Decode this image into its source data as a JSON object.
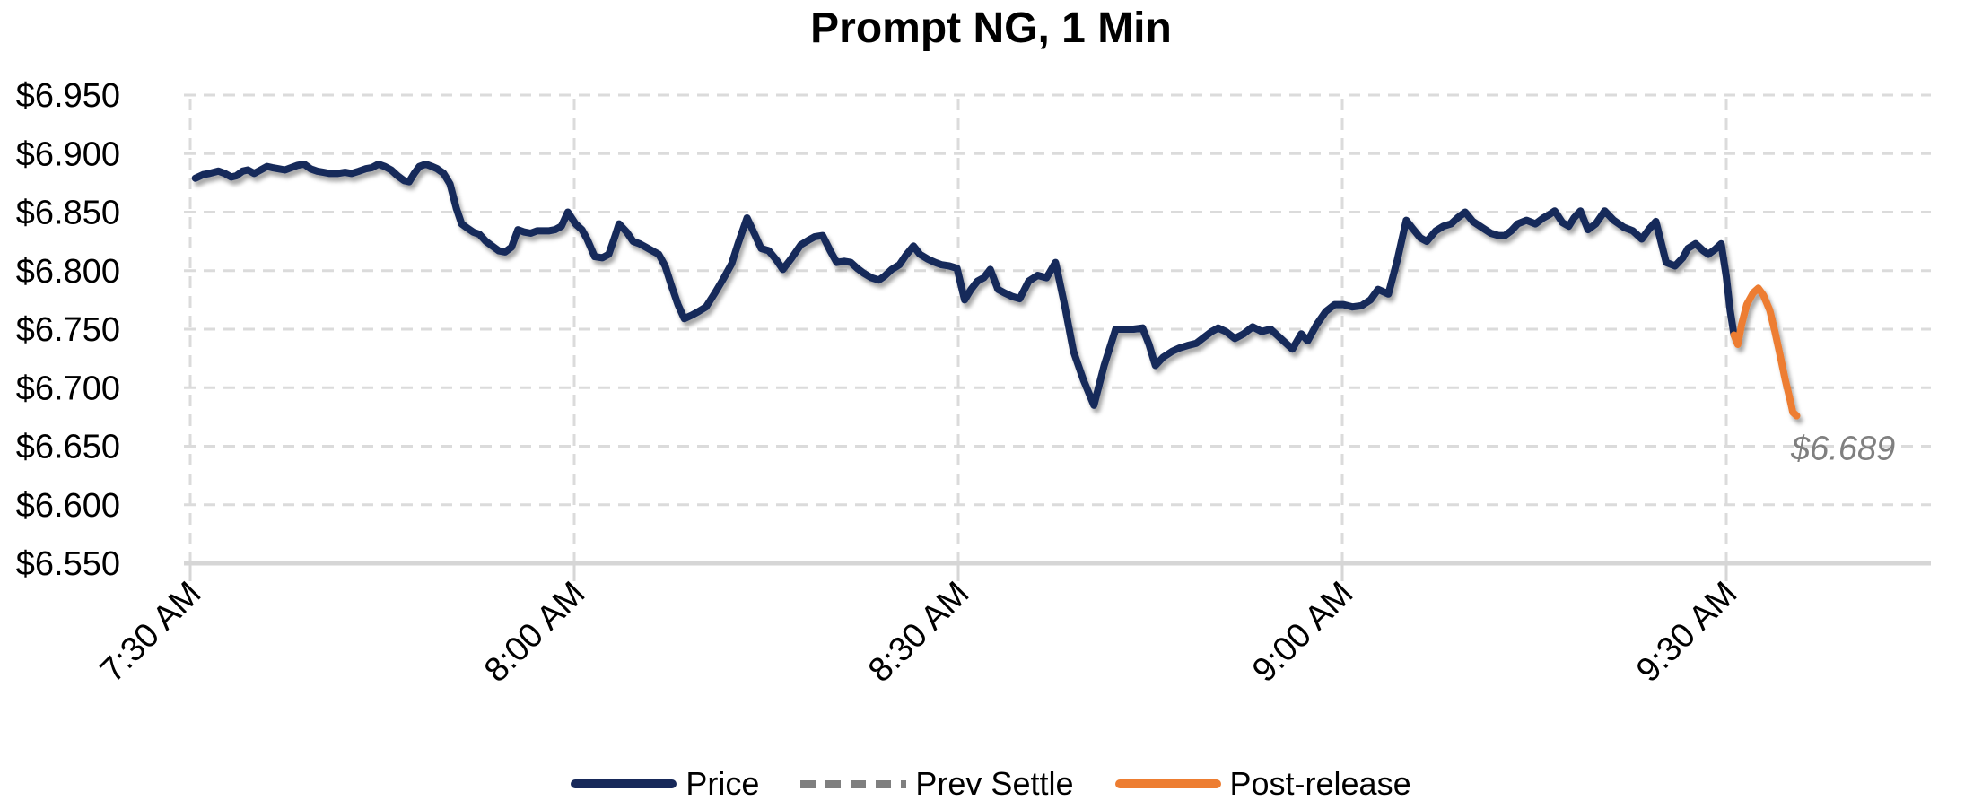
{
  "chart_data": {
    "type": "line",
    "title": "Prompt NG, 1 Min",
    "x_axis": {
      "t_unit": "minutes after 7:30 AM",
      "ticks": [
        {
          "t": 0,
          "label": "7:30 AM"
        },
        {
          "t": 30,
          "label": "8:00 AM"
        },
        {
          "t": 60,
          "label": "8:30 AM"
        },
        {
          "t": 90,
          "label": "9:00 AM"
        },
        {
          "t": 120,
          "label": "9:30 AM"
        }
      ]
    },
    "y_axis": {
      "min": 6.55,
      "max": 6.95,
      "tick_step": 0.05,
      "ticks": [
        {
          "value": 6.95,
          "label": "$6.950"
        },
        {
          "value": 6.9,
          "label": "$6.900"
        },
        {
          "value": 6.85,
          "label": "$6.850"
        },
        {
          "value": 6.8,
          "label": "$6.800"
        },
        {
          "value": 6.75,
          "label": "$6.750"
        },
        {
          "value": 6.7,
          "label": "$6.700"
        },
        {
          "value": 6.65,
          "label": "$6.650"
        },
        {
          "value": 6.6,
          "label": "$6.600"
        },
        {
          "value": 6.55,
          "label": "$6.550"
        }
      ]
    },
    "grid": {
      "style": "dashed",
      "color": "#DBDBDB",
      "legend_position": "bottom-center"
    },
    "prev_settle": {
      "value": 6.689,
      "annotation": "$6.689",
      "color": "#7F7F7F"
    },
    "legend": [
      {
        "label": "Price",
        "color": "#17295A",
        "dash": false
      },
      {
        "label": "Prev Settle",
        "color": "#7F7F7F",
        "dash": true
      },
      {
        "label": "Post-release",
        "color": "#ED7D31",
        "dash": false
      }
    ],
    "series": [
      {
        "name": "Price",
        "color": "#17295A",
        "points": [
          [
            0.4,
            6.879
          ],
          [
            1,
            6.882
          ],
          [
            1.5,
            6.883
          ],
          [
            2.2,
            6.885
          ],
          [
            2.7,
            6.883
          ],
          [
            3.2,
            6.88
          ],
          [
            3.6,
            6.881
          ],
          [
            4.1,
            6.885
          ],
          [
            4.5,
            6.886
          ],
          [
            5,
            6.883
          ],
          [
            5.5,
            6.886
          ],
          [
            6,
            6.889
          ],
          [
            6.4,
            6.888
          ],
          [
            6.9,
            6.887
          ],
          [
            7.4,
            6.886
          ],
          [
            7.9,
            6.888
          ],
          [
            8.4,
            6.89
          ],
          [
            8.9,
            6.891
          ],
          [
            9.4,
            6.887
          ],
          [
            9.9,
            6.885
          ],
          [
            10.4,
            6.884
          ],
          [
            10.9,
            6.883
          ],
          [
            11.5,
            6.883
          ],
          [
            12.1,
            6.884
          ],
          [
            12.6,
            6.883
          ],
          [
            13.2,
            6.885
          ],
          [
            13.7,
            6.887
          ],
          [
            14.2,
            6.888
          ],
          [
            14.7,
            6.891
          ],
          [
            15.2,
            6.889
          ],
          [
            15.7,
            6.886
          ],
          [
            16.2,
            6.881
          ],
          [
            16.7,
            6.877
          ],
          [
            17.1,
            6.876
          ],
          [
            17.5,
            6.883
          ],
          [
            17.9,
            6.889
          ],
          [
            18.4,
            6.891
          ],
          [
            18.9,
            6.889
          ],
          [
            19.3,
            6.887
          ],
          [
            19.8,
            6.883
          ],
          [
            20.3,
            6.874
          ],
          [
            20.8,
            6.853
          ],
          [
            21.2,
            6.84
          ],
          [
            21.7,
            6.836
          ],
          [
            22.1,
            6.833
          ],
          [
            22.6,
            6.831
          ],
          [
            23.1,
            6.825
          ],
          [
            23.6,
            6.821
          ],
          [
            24.1,
            6.817
          ],
          [
            24.6,
            6.816
          ],
          [
            25.1,
            6.82
          ],
          [
            25.6,
            6.835
          ],
          [
            26.1,
            6.833
          ],
          [
            26.6,
            6.832
          ],
          [
            27.1,
            6.834
          ],
          [
            27.5,
            6.834
          ],
          [
            28,
            6.834
          ],
          [
            28.5,
            6.835
          ],
          [
            29,
            6.838
          ],
          [
            29.5,
            6.85
          ],
          [
            30.1,
            6.84
          ],
          [
            30.6,
            6.835
          ],
          [
            31,
            6.827
          ],
          [
            31.6,
            6.812
          ],
          [
            32.2,
            6.811
          ],
          [
            32.7,
            6.814
          ],
          [
            33.2,
            6.83
          ],
          [
            33.5,
            6.84
          ],
          [
            34.1,
            6.833
          ],
          [
            34.6,
            6.825
          ],
          [
            35.1,
            6.823
          ],
          [
            35.6,
            6.82
          ],
          [
            36.1,
            6.817
          ],
          [
            36.6,
            6.814
          ],
          [
            37.1,
            6.804
          ],
          [
            37.6,
            6.787
          ],
          [
            38.1,
            6.771
          ],
          [
            38.6,
            6.759
          ],
          [
            39.2,
            6.762
          ],
          [
            39.7,
            6.765
          ],
          [
            40.3,
            6.769
          ],
          [
            41,
            6.781
          ],
          [
            41.7,
            6.794
          ],
          [
            42.3,
            6.806
          ],
          [
            42.8,
            6.823
          ],
          [
            43.5,
            6.845
          ],
          [
            44.1,
            6.831
          ],
          [
            44.6,
            6.819
          ],
          [
            45.2,
            6.817
          ],
          [
            45.8,
            6.809
          ],
          [
            46.3,
            6.801
          ],
          [
            47,
            6.811
          ],
          [
            47.7,
            6.822
          ],
          [
            48.3,
            6.826
          ],
          [
            48.8,
            6.829
          ],
          [
            49.4,
            6.83
          ],
          [
            50,
            6.817
          ],
          [
            50.5,
            6.807
          ],
          [
            51.1,
            6.808
          ],
          [
            51.6,
            6.807
          ],
          [
            52.1,
            6.802
          ],
          [
            52.6,
            6.798
          ],
          [
            53.2,
            6.794
          ],
          [
            53.8,
            6.792
          ],
          [
            54.2,
            6.795
          ],
          [
            54.8,
            6.801
          ],
          [
            55.4,
            6.805
          ],
          [
            55.9,
            6.813
          ],
          [
            56.5,
            6.821
          ],
          [
            57,
            6.814
          ],
          [
            57.6,
            6.81
          ],
          [
            58.2,
            6.807
          ],
          [
            58.7,
            6.805
          ],
          [
            59.3,
            6.804
          ],
          [
            59.9,
            6.802
          ],
          [
            60.5,
            6.775
          ],
          [
            61,
            6.784
          ],
          [
            61.5,
            6.791
          ],
          [
            62,
            6.794
          ],
          [
            62.5,
            6.801
          ],
          [
            63.1,
            6.784
          ],
          [
            63.6,
            6.781
          ],
          [
            64.2,
            6.778
          ],
          [
            64.8,
            6.776
          ],
          [
            65.5,
            6.791
          ],
          [
            66.2,
            6.796
          ],
          [
            66.9,
            6.794
          ],
          [
            67.6,
            6.807
          ],
          [
            68.3,
            6.771
          ],
          [
            69,
            6.731
          ],
          [
            69.8,
            6.706
          ],
          [
            70.6,
            6.685
          ],
          [
            71.4,
            6.719
          ],
          [
            72.3,
            6.75
          ],
          [
            73,
            6.75
          ],
          [
            73.7,
            6.75
          ],
          [
            74.4,
            6.751
          ],
          [
            74.9,
            6.737
          ],
          [
            75.4,
            6.719
          ],
          [
            76,
            6.726
          ],
          [
            76.7,
            6.731
          ],
          [
            77.3,
            6.734
          ],
          [
            77.9,
            6.736
          ],
          [
            78.6,
            6.738
          ],
          [
            79.2,
            6.743
          ],
          [
            79.8,
            6.748
          ],
          [
            80.3,
            6.751
          ],
          [
            80.9,
            6.748
          ],
          [
            81.6,
            6.742
          ],
          [
            82.3,
            6.746
          ],
          [
            83,
            6.752
          ],
          [
            83.7,
            6.748
          ],
          [
            84.4,
            6.75
          ],
          [
            85.2,
            6.742
          ],
          [
            86.1,
            6.733
          ],
          [
            86.8,
            6.746
          ],
          [
            87.3,
            6.74
          ],
          [
            88,
            6.754
          ],
          [
            88.7,
            6.765
          ],
          [
            89.4,
            6.771
          ],
          [
            90.1,
            6.771
          ],
          [
            90.8,
            6.769
          ],
          [
            91.5,
            6.77
          ],
          [
            92.2,
            6.775
          ],
          [
            92.8,
            6.784
          ],
          [
            93.6,
            6.78
          ],
          [
            94.3,
            6.809
          ],
          [
            95,
            6.843
          ],
          [
            95.5,
            6.836
          ],
          [
            96.1,
            6.828
          ],
          [
            96.6,
            6.825
          ],
          [
            97.3,
            6.834
          ],
          [
            97.9,
            6.838
          ],
          [
            98.5,
            6.84
          ],
          [
            99,
            6.845
          ],
          [
            99.6,
            6.85
          ],
          [
            100.2,
            6.842
          ],
          [
            100.9,
            6.837
          ],
          [
            101.6,
            6.832
          ],
          [
            102.2,
            6.83
          ],
          [
            102.7,
            6.83
          ],
          [
            103.2,
            6.834
          ],
          [
            103.7,
            6.84
          ],
          [
            104.4,
            6.843
          ],
          [
            105.1,
            6.84
          ],
          [
            105.7,
            6.845
          ],
          [
            106.2,
            6.848
          ],
          [
            106.6,
            6.851
          ],
          [
            107.2,
            6.841
          ],
          [
            107.7,
            6.838
          ],
          [
            108.1,
            6.845
          ],
          [
            108.6,
            6.851
          ],
          [
            109.2,
            6.835
          ],
          [
            109.8,
            6.84
          ],
          [
            110.5,
            6.851
          ],
          [
            111.2,
            6.843
          ],
          [
            112,
            6.837
          ],
          [
            112.7,
            6.834
          ],
          [
            113.4,
            6.827
          ],
          [
            114,
            6.836
          ],
          [
            114.5,
            6.842
          ],
          [
            115.3,
            6.807
          ],
          [
            116,
            6.804
          ],
          [
            116.6,
            6.811
          ],
          [
            117,
            6.819
          ],
          [
            117.6,
            6.823
          ],
          [
            118.2,
            6.817
          ],
          [
            118.6,
            6.814
          ],
          [
            119.1,
            6.818
          ],
          [
            119.6,
            6.823
          ],
          [
            120,
            6.795
          ],
          [
            120.3,
            6.766
          ],
          [
            120.6,
            6.745
          ]
        ]
      },
      {
        "name": "Post-release",
        "color": "#ED7D31",
        "points": [
          [
            120.6,
            6.745
          ],
          [
            120.9,
            6.737
          ],
          [
            121.2,
            6.754
          ],
          [
            121.6,
            6.771
          ],
          [
            122.1,
            6.781
          ],
          [
            122.5,
            6.785
          ],
          [
            122.9,
            6.779
          ],
          [
            123.4,
            6.766
          ],
          [
            123.8,
            6.748
          ],
          [
            124.2,
            6.728
          ],
          [
            124.6,
            6.707
          ],
          [
            125,
            6.689
          ],
          [
            125.2,
            6.679
          ],
          [
            125.5,
            6.676
          ]
        ]
      }
    ]
  }
}
